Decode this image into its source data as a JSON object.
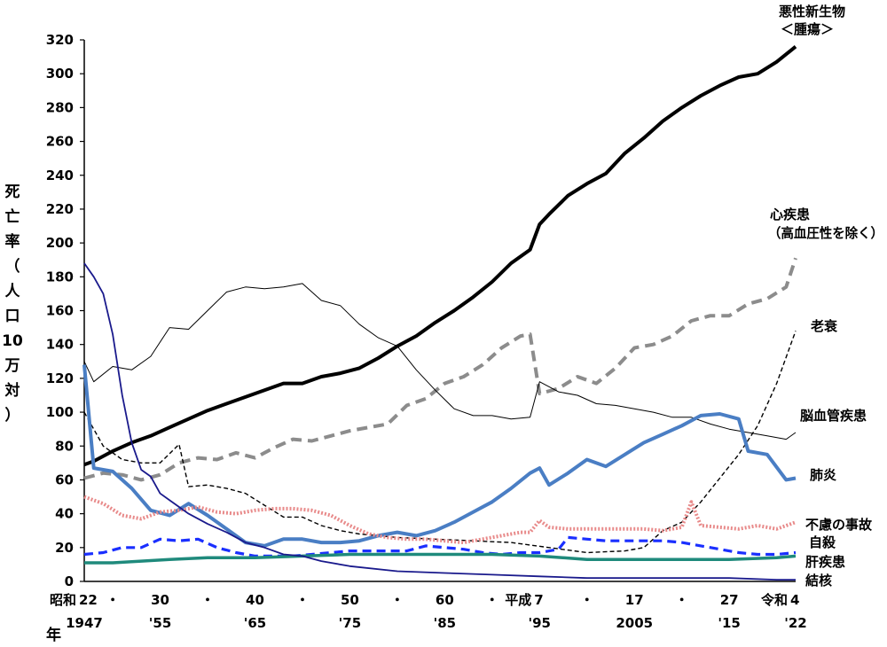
{
  "chart_data": {
    "type": "line",
    "ylabel": "死亡率（人口10万対）",
    "ylabel_chars": [
      "死",
      "亡",
      "率",
      "（",
      "人",
      "口",
      "10",
      "万",
      "対",
      "）"
    ],
    "xlabel": "年",
    "ylim": [
      0,
      320
    ],
    "yticks": [
      0,
      20,
      40,
      60,
      80,
      100,
      120,
      140,
      160,
      180,
      200,
      220,
      240,
      260,
      280,
      300,
      320
    ],
    "xlim": [
      1947,
      2022
    ],
    "grid": false,
    "xticks": [
      {
        "x": 1947,
        "era": "昭和",
        "top": "22",
        "bottom": "1947"
      },
      {
        "x": 1950,
        "top": "・",
        "bottom": ""
      },
      {
        "x": 1955,
        "top": "30",
        "bottom": "'55"
      },
      {
        "x": 1960,
        "top": "・",
        "bottom": ""
      },
      {
        "x": 1965,
        "top": "40",
        "bottom": "'65"
      },
      {
        "x": 1970,
        "top": "・",
        "bottom": ""
      },
      {
        "x": 1975,
        "top": "50",
        "bottom": "'75"
      },
      {
        "x": 1980,
        "top": "・",
        "bottom": ""
      },
      {
        "x": 1985,
        "top": "60",
        "bottom": "'85"
      },
      {
        "x": 1990,
        "top": "・",
        "bottom": ""
      },
      {
        "x": 1995,
        "era": "平成",
        "top": "7",
        "bottom": "'95"
      },
      {
        "x": 2000,
        "top": "・",
        "bottom": ""
      },
      {
        "x": 2005,
        "top": "17",
        "bottom": "2005"
      },
      {
        "x": 2010,
        "top": "・",
        "bottom": ""
      },
      {
        "x": 2015,
        "top": "27",
        "bottom": "'15"
      },
      {
        "x": 2022,
        "era": "令和",
        "top": "4",
        "bottom": "'22"
      }
    ],
    "series": [
      {
        "name": "悪性新生物＜腫瘍＞",
        "color": "#000000",
        "style": "thick",
        "label_id": "malignant",
        "x": [
          1947,
          1948,
          1950,
          1952,
          1954,
          1956,
          1958,
          1960,
          1962,
          1964,
          1966,
          1968,
          1970,
          1972,
          1974,
          1976,
          1978,
          1980,
          1982,
          1984,
          1986,
          1988,
          1990,
          1992,
          1994,
          1995,
          1996,
          1998,
          2000,
          2002,
          2004,
          2006,
          2008,
          2010,
          2012,
          2014,
          2016,
          2018,
          2020,
          2022
        ],
        "values": [
          69,
          71,
          77,
          82,
          86,
          91,
          96,
          101,
          105,
          109,
          113,
          117,
          117,
          121,
          123,
          126,
          132,
          139,
          145,
          153,
          160,
          168,
          177,
          188,
          196,
          211,
          217,
          228,
          235,
          241,
          253,
          262,
          272,
          280,
          287,
          293,
          298,
          300,
          307,
          316
        ]
      },
      {
        "name": "心疾患（高血圧性を除く）",
        "color": "#8c8c8c",
        "style": "dash-thick",
        "label_id": "heart",
        "x": [
          1947,
          1949,
          1951,
          1953,
          1955,
          1957,
          1959,
          1961,
          1963,
          1965,
          1967,
          1969,
          1971,
          1973,
          1975,
          1977,
          1979,
          1981,
          1983,
          1985,
          1987,
          1989,
          1991,
          1993,
          1994,
          1995,
          1997,
          1999,
          2001,
          2003,
          2005,
          2007,
          2009,
          2011,
          2013,
          2015,
          2017,
          2019,
          2021,
          2022
        ],
        "values": [
          61,
          64,
          63,
          60,
          63,
          70,
          73,
          72,
          76,
          73,
          79,
          84,
          83,
          86,
          89,
          91,
          93,
          104,
          108,
          117,
          121,
          128,
          138,
          145,
          146,
          111,
          114,
          121,
          117,
          126,
          138,
          140,
          145,
          154,
          157,
          157,
          164,
          167,
          174,
          191
        ]
      },
      {
        "name": "老衰",
        "color": "#000000",
        "style": "dash-thin",
        "label_id": "senility",
        "x": [
          1947,
          1949,
          1951,
          1953,
          1955,
          1957,
          1958,
          1960,
          1962,
          1964,
          1966,
          1968,
          1970,
          1972,
          1974,
          1976,
          1978,
          1980,
          1984,
          1988,
          1992,
          1996,
          2000,
          2004,
          2006,
          2008,
          2010,
          2012,
          2014,
          2016,
          2018,
          2020,
          2022
        ],
        "values": [
          100,
          80,
          72,
          70,
          70,
          81,
          56,
          57,
          55,
          52,
          45,
          38,
          38,
          33,
          30,
          28,
          27,
          26,
          25,
          24,
          23,
          20,
          17,
          18,
          20,
          30,
          35,
          47,
          61,
          75,
          92,
          117,
          148
        ]
      },
      {
        "name": "脳血管疾患",
        "color": "#000000",
        "style": "thin",
        "label_id": "stroke",
        "x": [
          1947,
          1948,
          1950,
          1952,
          1954,
          1956,
          1958,
          1960,
          1962,
          1964,
          1966,
          1968,
          1970,
          1972,
          1974,
          1976,
          1978,
          1980,
          1982,
          1984,
          1986,
          1988,
          1990,
          1992,
          1994,
          1995,
          1997,
          1999,
          2001,
          2003,
          2005,
          2007,
          2009,
          2011,
          2013,
          2015,
          2017,
          2019,
          2021,
          2022
        ],
        "values": [
          130,
          118,
          127,
          125,
          133,
          150,
          149,
          160,
          171,
          174,
          173,
          174,
          176,
          166,
          163,
          152,
          144,
          139,
          125,
          113,
          102,
          98,
          98,
          96,
          97,
          118,
          112,
          110,
          105,
          104,
          102,
          100,
          97,
          97,
          93,
          90,
          88,
          86,
          84,
          88
        ]
      },
      {
        "name": "肺炎",
        "color": "#4a7ec4",
        "style": "blue-thick",
        "label_id": "pneumonia",
        "x": [
          1947,
          1948,
          1950,
          1952,
          1954,
          1956,
          1958,
          1960,
          1962,
          1964,
          1966,
          1968,
          1970,
          1972,
          1974,
          1976,
          1978,
          1980,
          1982,
          1984,
          1986,
          1988,
          1990,
          1992,
          1994,
          1995,
          1996,
          1998,
          2000,
          2002,
          2004,
          2006,
          2008,
          2010,
          2012,
          2014,
          2016,
          2017,
          2019,
          2021,
          2022
        ],
        "values": [
          128,
          67,
          65,
          55,
          42,
          39,
          46,
          39,
          31,
          23,
          21,
          25,
          25,
          23,
          23,
          24,
          27,
          29,
          27,
          30,
          35,
          41,
          47,
          55,
          64,
          67,
          57,
          64,
          72,
          68,
          75,
          82,
          87,
          92,
          98,
          99,
          96,
          77,
          75,
          60,
          61
        ]
      },
      {
        "name": "不慮の事故",
        "color": "#e88a8a",
        "style": "pink-dotted",
        "label_id": "accident",
        "x": [
          1947,
          1949,
          1951,
          1953,
          1955,
          1957,
          1959,
          1961,
          1963,
          1965,
          1967,
          1969,
          1971,
          1973,
          1975,
          1977,
          1979,
          1981,
          1983,
          1985,
          1987,
          1989,
          1991,
          1993,
          1994,
          1995,
          1996,
          1998,
          2000,
          2002,
          2004,
          2006,
          2008,
          2010,
          2011,
          2012,
          2014,
          2016,
          2018,
          2020,
          2022
        ],
        "values": [
          50,
          46,
          39,
          37,
          41,
          42,
          44,
          41,
          40,
          42,
          43,
          43,
          42,
          39,
          33,
          28,
          26,
          25,
          25,
          24,
          23,
          25,
          27,
          29,
          29,
          36,
          32,
          31,
          31,
          31,
          31,
          31,
          30,
          32,
          47,
          33,
          32,
          31,
          33,
          31,
          35
        ]
      },
      {
        "name": "自殺",
        "color": "#1a2fff",
        "style": "blue-dash",
        "label_id": "suicide",
        "x": [
          1947,
          1949,
          1951,
          1953,
          1955,
          1957,
          1959,
          1961,
          1963,
          1965,
          1967,
          1969,
          1971,
          1973,
          1975,
          1977,
          1979,
          1981,
          1983,
          1985,
          1987,
          1989,
          1991,
          1993,
          1995,
          1997,
          1998,
          2000,
          2002,
          2004,
          2006,
          2008,
          2010,
          2012,
          2014,
          2016,
          2018,
          2020,
          2022
        ],
        "values": [
          16,
          17,
          20,
          20,
          25,
          24,
          25,
          20,
          17,
          15,
          15,
          15,
          16,
          17,
          18,
          18,
          18,
          18,
          21,
          20,
          19,
          17,
          16,
          17,
          17,
          19,
          26,
          25,
          24,
          24,
          24,
          24,
          23,
          21,
          19,
          17,
          16,
          16,
          17
        ]
      },
      {
        "name": "肝疾患",
        "color": "#1f8a7c",
        "style": "teal-thick",
        "label_id": "liver",
        "x": [
          1947,
          1950,
          1953,
          1956,
          1960,
          1965,
          1970,
          1975,
          1980,
          1985,
          1990,
          1995,
          2000,
          2005,
          2010,
          2015,
          2020,
          2022
        ],
        "values": [
          11,
          11,
          12,
          13,
          14,
          14,
          15,
          16,
          16,
          16,
          16,
          15,
          13,
          13,
          13,
          13,
          14,
          15
        ]
      },
      {
        "name": "結核",
        "color": "#1a1a8c",
        "style": "navy",
        "label_id": "tb",
        "x": [
          1947,
          1948,
          1949,
          1950,
          1951,
          1952,
          1953,
          1954,
          1955,
          1956,
          1958,
          1960,
          1962,
          1964,
          1966,
          1968,
          1970,
          1972,
          1975,
          1980,
          1985,
          1990,
          1995,
          2000,
          2005,
          2010,
          2015,
          2020,
          2022
        ],
        "values": [
          188,
          180,
          170,
          146,
          110,
          82,
          66,
          62,
          52,
          48,
          40,
          34,
          29,
          23,
          20,
          16,
          15,
          12,
          9,
          6,
          5,
          4,
          3,
          2,
          2,
          2,
          2,
          1,
          1
        ]
      }
    ],
    "labels": {
      "malignant_1": "悪性新生物",
      "malignant_2": "＜腫瘍＞",
      "heart_1": "心疾患",
      "heart_2": "（高血圧性を除く）",
      "senility": "老衰",
      "stroke": "脳血管疾患",
      "pneumonia": "肺炎",
      "accident": "不慮の事故",
      "suicide": "自殺",
      "liver": "肝疾患",
      "tb": "結核"
    }
  }
}
